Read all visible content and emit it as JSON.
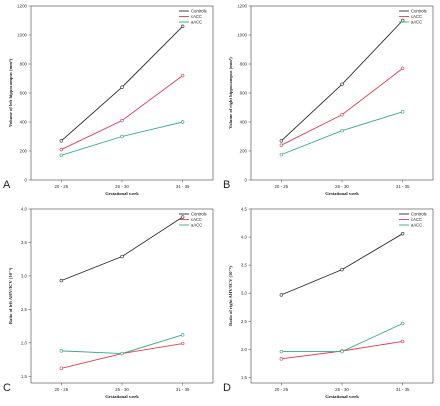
{
  "series_colors": [
    "#2b2b2b",
    "#d6414f",
    "#3aa785"
  ],
  "chart_data": [
    {
      "type": "line",
      "panel_label": "A",
      "x": [
        "20 - 25",
        "26 - 30",
        "31 - 35"
      ],
      "xlabel": "Gestational week",
      "ylabel": "Volume of left hippocampus (mm³)",
      "ylim": [
        0,
        1200
      ],
      "yticks": [
        0,
        200,
        400,
        600,
        800,
        1000,
        1200
      ],
      "ytick_labels": [
        "0",
        "200",
        "400",
        "600",
        "800",
        "1000",
        "1200"
      ],
      "legend_position": "top-right",
      "series": [
        {
          "name": "Controls",
          "values": [
            270,
            640,
            1060
          ]
        },
        {
          "name": "cACC",
          "values": [
            210,
            410,
            720
          ]
        },
        {
          "name": "aACC",
          "values": [
            170,
            300,
            400
          ]
        }
      ]
    },
    {
      "type": "line",
      "panel_label": "B",
      "x": [
        "20 - 25",
        "26 - 30",
        "31 - 35"
      ],
      "xlabel": "Gestational week",
      "ylabel": "Volume of right hippocampus (mm³)",
      "ylim": [
        0,
        1200
      ],
      "yticks": [
        0,
        200,
        400,
        600,
        800,
        1000,
        1200
      ],
      "ytick_labels": [
        "0",
        "200",
        "400",
        "600",
        "800",
        "1000",
        "1200"
      ],
      "legend_position": "top-right",
      "series": [
        {
          "name": "Controls",
          "values": [
            270,
            660,
            1100
          ]
        },
        {
          "name": "cACC",
          "values": [
            240,
            450,
            770
          ]
        },
        {
          "name": "aACC",
          "values": [
            175,
            340,
            470
          ]
        }
      ]
    },
    {
      "type": "line",
      "panel_label": "C",
      "x": [
        "20 - 25",
        "26 - 30",
        "31 - 35"
      ],
      "xlabel": "Gestational week",
      "ylabel": "Ratio of left AHV/ICV (10⁻³)",
      "ylim": [
        1.4,
        4.0
      ],
      "yticks": [
        1.5,
        2.0,
        2.5,
        3.0,
        3.5,
        4.0
      ],
      "ytick_labels": [
        "1,5",
        "2,0",
        "2,5",
        "3,0",
        "3,5",
        "4,0"
      ],
      "legend_position": "top-right",
      "series": [
        {
          "name": "Controls",
          "values": [
            2.93,
            3.29,
            3.88
          ]
        },
        {
          "name": "cACC",
          "values": [
            1.62,
            1.84,
            1.99
          ]
        },
        {
          "name": "aACC",
          "values": [
            1.88,
            1.84,
            2.12
          ]
        }
      ]
    },
    {
      "type": "line",
      "panel_label": "D",
      "x": [
        "20 - 25",
        "26 - 30",
        "31 - 35"
      ],
      "xlabel": "Gestational week",
      "ylabel": "Ratio of right AHV/ICV (10⁻³)",
      "ylim": [
        1.4,
        4.5
      ],
      "yticks": [
        1.5,
        2.0,
        2.5,
        3.0,
        3.5,
        4.0,
        4.5
      ],
      "ytick_labels": [
        "1,5",
        "2,0",
        "2,5",
        "3,0",
        "3,5",
        "4,0",
        "4,5"
      ],
      "legend_position": "top-right",
      "series": [
        {
          "name": "Controls",
          "values": [
            2.97,
            3.42,
            4.06
          ]
        },
        {
          "name": "cACC",
          "values": [
            1.83,
            1.97,
            2.14
          ]
        },
        {
          "name": "aACC",
          "values": [
            1.96,
            1.96,
            2.46
          ]
        }
      ]
    }
  ]
}
